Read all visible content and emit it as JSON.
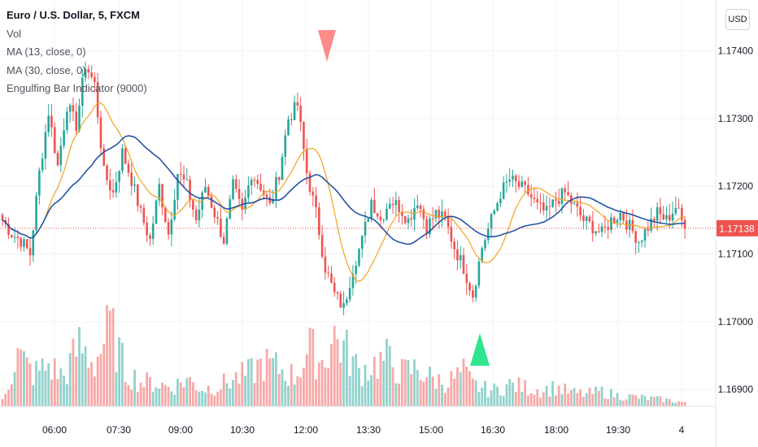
{
  "header": {
    "title": "Euro / U.S. Dollar, 5, FXCM",
    "indicators": [
      "Vol",
      "MA (13, close, 0)",
      "MA (30, close, 0)",
      "Engulfing Bar Indicator (9000)"
    ]
  },
  "currency_button": "USD",
  "colors": {
    "up": "#26a69a",
    "down": "#ef5350",
    "ma_fast": "#f4a21e",
    "ma_slow": "#2453a6",
    "price_label_bg": "#ef5350",
    "signal_up": "#2fe58f",
    "signal_down": "#ff8a8a"
  },
  "chart_data": {
    "type": "candlestick",
    "symbol": "EURUSD",
    "timeframe": "5",
    "x_ticks": [
      "06:00",
      "07:30",
      "09:00",
      "10:30",
      "12:00",
      "13:30",
      "15:00",
      "16:30",
      "18:00",
      "19:30",
      "4"
    ],
    "y_ticks": [
      "1.17400",
      "1.17300",
      "1.17200",
      "1.17100",
      "1.17000",
      "1.16900"
    ],
    "ylim": [
      1.16875,
      1.17475
    ],
    "last_price": "1.17138",
    "signals": [
      {
        "type": "bearish-engulfing",
        "time": "12:40"
      },
      {
        "type": "bullish-engulfing",
        "time": "16:15"
      }
    ],
    "close_keyframes": [
      [
        0,
        1.1715
      ],
      [
        3,
        1.1713
      ],
      [
        6,
        1.1712
      ],
      [
        9,
        1.171
      ],
      [
        12,
        1.1722
      ],
      [
        15,
        1.1731
      ],
      [
        18,
        1.1723
      ],
      [
        21,
        1.1732
      ],
      [
        24,
        1.1729
      ],
      [
        27,
        1.1738
      ],
      [
        30,
        1.1735
      ],
      [
        33,
        1.1722
      ],
      [
        36,
        1.1719
      ],
      [
        39,
        1.1725
      ],
      [
        42,
        1.1721
      ],
      [
        45,
        1.1716
      ],
      [
        48,
        1.1712
      ],
      [
        51,
        1.172
      ],
      [
        54,
        1.1713
      ],
      [
        57,
        1.1722
      ],
      [
        60,
        1.172
      ],
      [
        63,
        1.1715
      ],
      [
        66,
        1.172
      ],
      [
        69,
        1.1716
      ],
      [
        72,
        1.1712
      ],
      [
        75,
        1.172
      ],
      [
        78,
        1.1716
      ],
      [
        81,
        1.1722
      ],
      [
        84,
        1.172
      ],
      [
        87,
        1.1717
      ],
      [
        90,
        1.1722
      ],
      [
        93,
        1.173
      ],
      [
        96,
        1.1732
      ],
      [
        99,
        1.1722
      ],
      [
        102,
        1.1716
      ],
      [
        105,
        1.1708
      ],
      [
        108,
        1.1704
      ],
      [
        111,
        1.1702
      ],
      [
        114,
        1.1708
      ],
      [
        117,
        1.1712
      ],
      [
        120,
        1.1718
      ],
      [
        123,
        1.1715
      ],
      [
        126,
        1.1718
      ],
      [
        129,
        1.1717
      ],
      [
        132,
        1.1715
      ],
      [
        135,
        1.1718
      ],
      [
        138,
        1.1714
      ],
      [
        141,
        1.1716
      ],
      [
        144,
        1.1715
      ],
      [
        147,
        1.1711
      ],
      [
        150,
        1.1708
      ],
      [
        153,
        1.1704
      ],
      [
        156,
        1.1711
      ],
      [
        159,
        1.1715
      ],
      [
        162,
        1.1719
      ],
      [
        165,
        1.1721
      ],
      [
        168,
        1.172
      ],
      [
        171,
        1.1719
      ],
      [
        174,
        1.1717
      ],
      [
        177,
        1.1716
      ],
      [
        180,
        1.1718
      ],
      [
        183,
        1.1719
      ],
      [
        186,
        1.1717
      ],
      [
        189,
        1.1715
      ],
      [
        192,
        1.1714
      ],
      [
        195,
        1.1713
      ],
      [
        198,
        1.1715
      ],
      [
        201,
        1.1716
      ],
      [
        204,
        1.1714
      ],
      [
        207,
        1.1712
      ],
      [
        210,
        1.1714
      ],
      [
        213,
        1.1716
      ],
      [
        216,
        1.1715
      ],
      [
        219,
        1.1717
      ],
      [
        222,
        1.17138
      ]
    ],
    "volume_keyframes": [
      [
        0,
        0.05
      ],
      [
        5,
        0.38
      ],
      [
        10,
        0.24
      ],
      [
        15,
        0.3
      ],
      [
        20,
        0.22
      ],
      [
        25,
        0.45
      ],
      [
        30,
        0.32
      ],
      [
        35,
        0.58
      ],
      [
        40,
        0.26
      ],
      [
        45,
        0.18
      ],
      [
        50,
        0.17
      ],
      [
        55,
        0.14
      ],
      [
        60,
        0.2
      ],
      [
        65,
        0.13
      ],
      [
        70,
        0.15
      ],
      [
        75,
        0.2
      ],
      [
        80,
        0.24
      ],
      [
        85,
        0.32
      ],
      [
        90,
        0.28
      ],
      [
        95,
        0.22
      ],
      [
        100,
        0.42
      ],
      [
        104,
        0.33
      ],
      [
        108,
        0.52
      ],
      [
        112,
        0.4
      ],
      [
        116,
        0.26
      ],
      [
        120,
        0.3
      ],
      [
        125,
        0.35
      ],
      [
        130,
        0.25
      ],
      [
        135,
        0.28
      ],
      [
        140,
        0.2
      ],
      [
        145,
        0.18
      ],
      [
        150,
        0.25
      ],
      [
        153,
        0.16
      ],
      [
        157,
        0.13
      ],
      [
        160,
        0.12
      ],
      [
        165,
        0.16
      ],
      [
        170,
        0.14
      ],
      [
        175,
        0.12
      ],
      [
        180,
        0.14
      ],
      [
        185,
        0.1
      ],
      [
        190,
        0.09
      ],
      [
        195,
        0.11
      ],
      [
        200,
        0.08
      ],
      [
        205,
        0.07
      ],
      [
        210,
        0.06
      ],
      [
        215,
        0.05
      ],
      [
        222,
        0.03
      ]
    ]
  }
}
